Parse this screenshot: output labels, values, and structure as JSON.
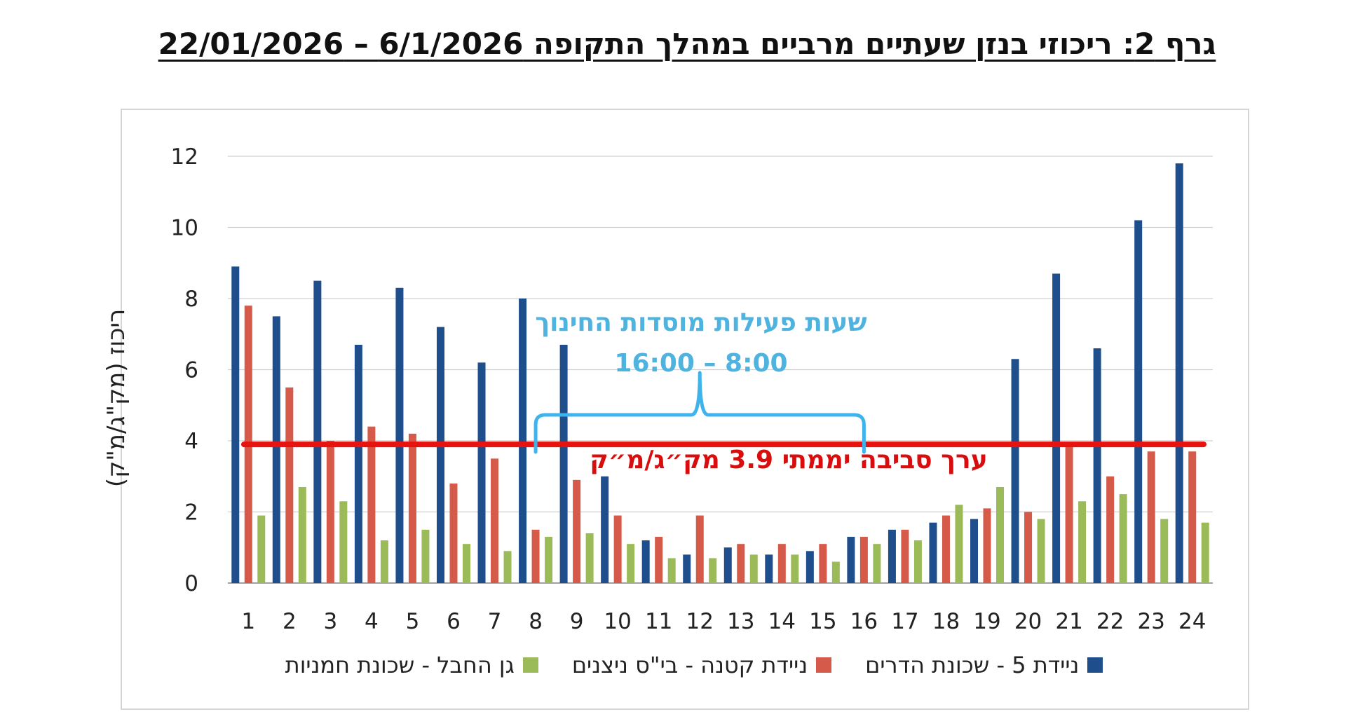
{
  "title": "גרף 2: ריכוזי בנזן שעתיים מרביים במהלך התקופה 6/1/2026 – 22/01/2026",
  "colors": {
    "series1": "#1f4e8c",
    "series2": "#d55a4a",
    "series3": "#9bbb59",
    "reference_line": "#e8120f",
    "bracket": "#3fb3ec",
    "hours_text": "#4fb3e0",
    "reference_text": "#d80e0e",
    "grid": "#d0d0d0"
  },
  "annotations": {
    "hours_line1": "שעות פעילות מוסדות החינוך",
    "hours_line2": "16:00 – 8:00",
    "reference_text": "ערך סביבה יממתי 3.9 מק״ג/מ״ק"
  },
  "chart_data": {
    "type": "bar",
    "title": "גרף 2: ריכוזי בנזן שעתיים מרביים במהלך התקופה 6/1/2026 – 22/01/2026",
    "xlabel": "",
    "ylabel": "ריכוז (מק\"ג/מ\"ק)",
    "ylim": [
      0,
      12
    ],
    "yticks": [
      0,
      2,
      4,
      6,
      8,
      10,
      12
    ],
    "grid": true,
    "legend_position": "bottom",
    "categories": [
      "1",
      "2",
      "3",
      "4",
      "5",
      "6",
      "7",
      "8",
      "9",
      "10",
      "11",
      "12",
      "13",
      "14",
      "15",
      "16",
      "17",
      "18",
      "19",
      "20",
      "21",
      "22",
      "23",
      "24"
    ],
    "series": [
      {
        "name": "ניידת 5 - שכונת הדרים",
        "color": "#1f4e8c",
        "values": [
          8.9,
          7.5,
          8.5,
          6.7,
          8.3,
          7.2,
          6.2,
          8.0,
          6.7,
          3.0,
          1.2,
          0.8,
          1.0,
          0.8,
          0.9,
          1.3,
          1.5,
          1.7,
          1.8,
          6.3,
          8.7,
          6.6,
          10.2,
          11.8
        ]
      },
      {
        "name": "ניידת קטנה - בי\"ס ניצנים",
        "color": "#d55a4a",
        "values": [
          7.8,
          5.5,
          4.0,
          4.4,
          4.2,
          2.8,
          3.5,
          1.5,
          2.9,
          1.9,
          1.3,
          1.9,
          1.1,
          1.1,
          1.1,
          1.3,
          1.5,
          1.9,
          2.1,
          2.0,
          3.9,
          3.0,
          3.7,
          3.7
        ]
      },
      {
        "name": "גן החבל - שכונת חמניות",
        "color": "#9bbb59",
        "values": [
          1.9,
          2.7,
          2.3,
          1.2,
          1.5,
          1.1,
          0.9,
          1.3,
          1.4,
          1.1,
          0.7,
          0.7,
          0.8,
          0.8,
          0.6,
          1.1,
          1.2,
          2.2,
          2.7,
          1.8,
          2.3,
          2.5,
          1.8,
          1.7
        ]
      }
    ],
    "reference_line": {
      "value": 3.9,
      "label": "ערך סביבה יממתי 3.9 מק״ג/מ״ק"
    },
    "bracket_range": {
      "from": "8",
      "to": "16",
      "label": "שעות פעילות מוסדות החינוך 16:00 – 8:00"
    }
  }
}
